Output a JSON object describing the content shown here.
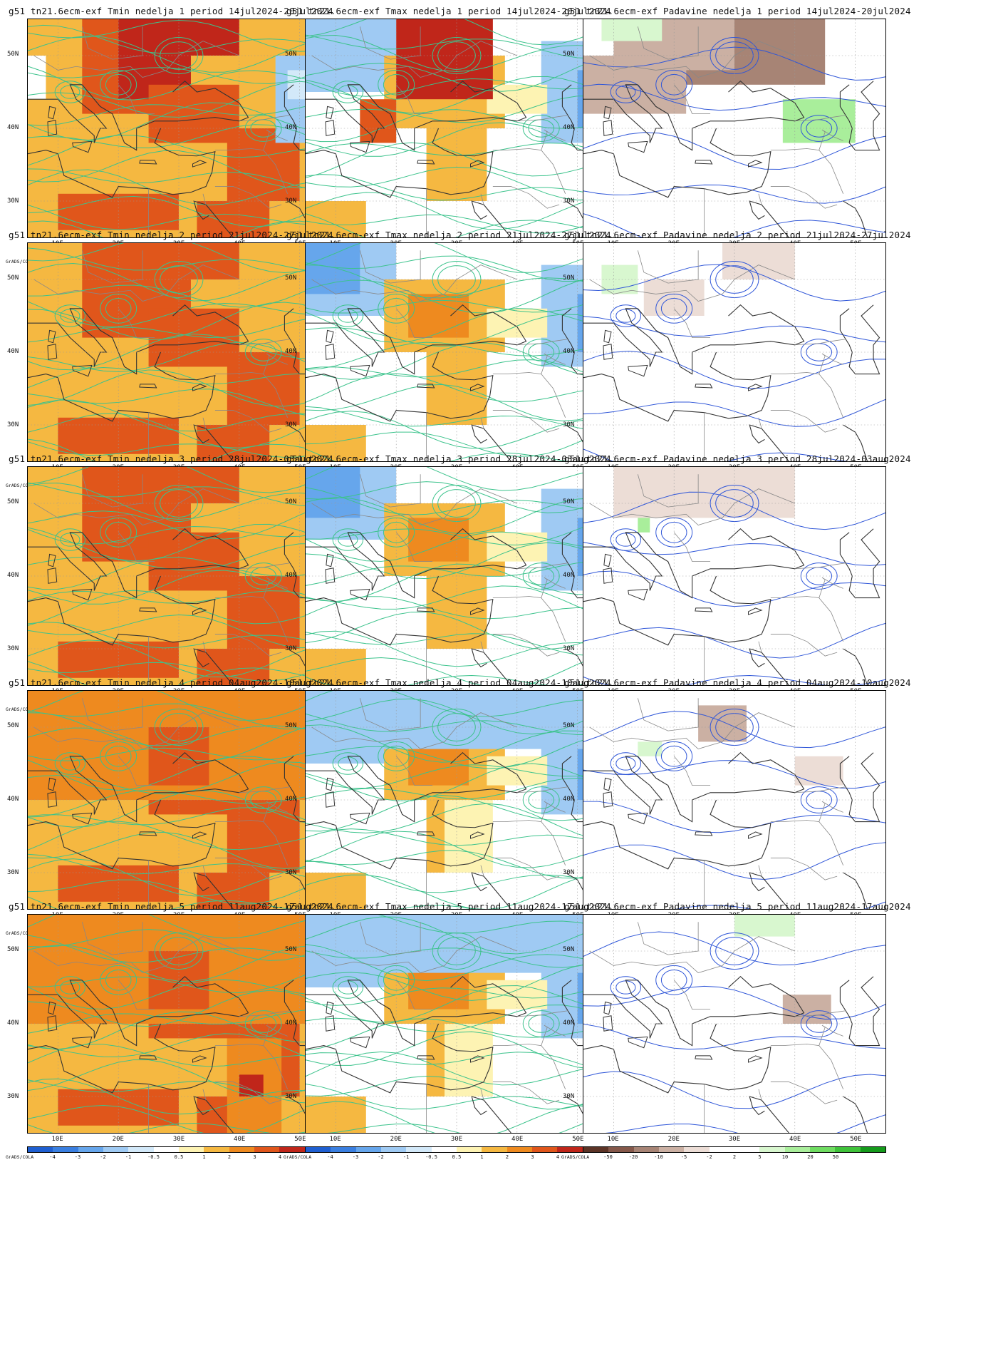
{
  "panels_rows": [
    [
      {
        "title": "g51 tn21.6ecm-exf Tmin nedelja 1 period 14jul2024-20jul2024",
        "kind": "tmin"
      },
      {
        "title": "g51 tn21.6ecm-exf Tmax nedelja 1 period 14jul2024-20jul2024",
        "kind": "tmax"
      },
      {
        "title": "g51 tn21.6ecm-exf Padavine nedelja 1 period 14jul2024-20jul2024",
        "kind": "precip"
      }
    ],
    [
      {
        "title": "g51 tn21.6ecm-exf Tmin nedelja 2 period 21jul2024-27jul2024",
        "kind": "tmin"
      },
      {
        "title": "g51 tn21.6ecm-exf Tmax nedelja 2 period 21jul2024-27jul2024",
        "kind": "tmax"
      },
      {
        "title": "g51 tn21.6ecm-exf Padavine nedelja 2 period 21jul2024-27jul2024",
        "kind": "precip"
      }
    ],
    [
      {
        "title": "g51 tn21.6ecm-exf Tmin nedelja 3 period 28jul2024-03aug2024",
        "kind": "tmin"
      },
      {
        "title": "g51 tn21.6ecm-exf Tmax nedelja 3 period 28jul2024-03aug2024",
        "kind": "tmax"
      },
      {
        "title": "g51 tn21.6ecm-exf Padavine nedelja 3 period 28jul2024-03aug2024",
        "kind": "precip"
      }
    ],
    [
      {
        "title": "g51 tn21.6ecm-exf Tmin nedelja 4 period 04aug2024-10aug2024",
        "kind": "tmin"
      },
      {
        "title": "g51 tn21.6ecm-exf Tmax nedelja 4 period 04aug2024-10aug2024",
        "kind": "tmax"
      },
      {
        "title": "g51 tn21.6ecm-exf Padavine nedelja 4 period 04aug2024-10aug2024",
        "kind": "precip"
      }
    ],
    [
      {
        "title": "g51 tn21.6ecm-exf Tmin nedelja 5 period 11aug2024-17aug2024",
        "kind": "tmin"
      },
      {
        "title": "g51 tn21.6ecm-exf Tmax nedelja 5 period 11aug2024-17aug2024",
        "kind": "tmax"
      },
      {
        "title": "g51 tn21.6ecm-exf Padavine nedelja 5 period 11aug2024-17aug2024",
        "kind": "precip"
      }
    ]
  ],
  "lat_labels": [
    "50N",
    "40N",
    "30N"
  ],
  "lon_labels": [
    "10E",
    "20E",
    "30E",
    "40E",
    "50E"
  ],
  "grads_label": "GrADS/COLA",
  "colorbars": {
    "temp": {
      "colors": [
        "#1f5fd1",
        "#3a7fe0",
        "#66a6ec",
        "#9fcaf3",
        "#d3e9f9",
        "#ffffff",
        "#fdf3b3",
        "#f5b841",
        "#ee8a1f",
        "#e0561b",
        "#c0261a",
        "#8c0f0f"
      ],
      "ticks": [
        "-4",
        "-3",
        "-2",
        "-1",
        "-0.5",
        "0.5",
        "1",
        "2",
        "3",
        "4"
      ]
    },
    "precip": {
      "colors": [
        "#5c3426",
        "#85584a",
        "#a78475",
        "#cbb0a3",
        "#ecddd6",
        "#ffffff",
        "#ffffff",
        "#d8f7cf",
        "#a9ee9b",
        "#6fdc61",
        "#3fc23a",
        "#159a1b"
      ],
      "ticks": [
        "-50",
        "-20",
        "-10",
        "-5",
        "-2",
        "2",
        "5",
        "10",
        "20",
        "50"
      ]
    }
  },
  "palette": {
    "tmin_base": "#f5b841",
    "tmin_mid": "#ee8a1f",
    "tmin_hot": "#e0561b",
    "tmin_max": "#c0261a",
    "tmax_warm": "#f5b841",
    "tmax_light": "#fdf3b3",
    "tmax_cool": "#9fcaf3",
    "tmax_cold": "#66a6ec",
    "precip_brown": "#cbb0a3",
    "precip_green": "#a9ee9b",
    "contour_temp": "#3cc38c",
    "contour_precip": "#2f56d8",
    "coast": "#333333",
    "border": "#888888"
  }
}
